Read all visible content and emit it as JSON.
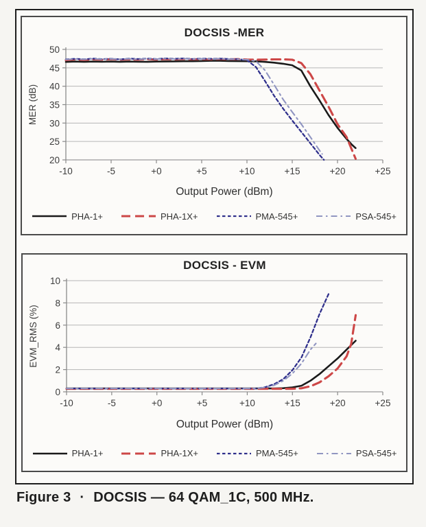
{
  "page": {
    "background": "#f6f5f2"
  },
  "style": {
    "grid_color": "#b6b6b6",
    "axis_color": "#8a8a8a",
    "baseline_color": "#9a9a9a",
    "tick_color": "#8a8a8a",
    "box_border": "#4a4a4a",
    "frame_border": "#1d1d1d",
    "title_color": "#222222",
    "text_color": "#3a3a3a"
  },
  "caption": {
    "label": "Figure 3",
    "separator": "·",
    "title": "DOCSIS — 64 QAM_1C, 500 MHz."
  },
  "chart_data": [
    {
      "id": "docsis-mer",
      "type": "line",
      "title": "DOCSIS -MER",
      "xlabel": "Output Power (dBm)",
      "ylabel": "MER (dB)",
      "xlim": [
        -10,
        25
      ],
      "ylim": [
        20,
        50
      ],
      "xticks": [
        -10,
        -5,
        0,
        5,
        10,
        15,
        20,
        25
      ],
      "xtick_labels": [
        "-10",
        "-5",
        "+0",
        "+5",
        "+10",
        "+15",
        "+20",
        "+25"
      ],
      "yticks": [
        20,
        25,
        30,
        35,
        40,
        45,
        50
      ],
      "ytick_labels": [
        "20",
        "25",
        "30",
        "35",
        "40",
        "45",
        "50"
      ],
      "grid": "horizontal",
      "legend_position": "bottom",
      "series": [
        {
          "name": "PHA-1+",
          "color": "#1a1a1a",
          "dash": "",
          "width": 2.6,
          "points": [
            [
              -10,
              46.6
            ],
            [
              -9,
              46.7
            ],
            [
              -8,
              46.62
            ],
            [
              -7,
              46.7
            ],
            [
              -6,
              46.65
            ],
            [
              -5,
              46.7
            ],
            [
              -4,
              46.62
            ],
            [
              -3,
              46.7
            ],
            [
              -2,
              46.65
            ],
            [
              -1,
              46.62
            ],
            [
              0,
              46.7
            ],
            [
              1,
              46.72
            ],
            [
              2,
              46.75
            ],
            [
              3,
              46.8
            ],
            [
              4,
              46.8
            ],
            [
              5,
              46.85
            ],
            [
              6,
              46.9
            ],
            [
              7,
              46.9
            ],
            [
              8,
              46.85
            ],
            [
              9,
              46.82
            ],
            [
              10,
              46.8
            ],
            [
              11,
              46.75
            ],
            [
              12,
              46.6
            ],
            [
              13,
              46.4
            ],
            [
              14,
              46.1
            ],
            [
              15,
              45.7
            ],
            [
              16,
              44.3
            ],
            [
              17,
              40.0
            ],
            [
              18,
              36.2
            ],
            [
              19,
              32.2
            ],
            [
              20,
              28.7
            ],
            [
              21,
              25.7
            ],
            [
              21.6,
              24.1
            ],
            [
              22,
              23.2
            ]
          ]
        },
        {
          "name": "PHA-1X+",
          "color": "#cd4747",
          "dash": "13 7",
          "width": 3.1,
          "points": [
            [
              -10,
              47.1
            ],
            [
              -9,
              47.3
            ],
            [
              -8,
              47.15
            ],
            [
              -7,
              47.32
            ],
            [
              -6,
              47.2
            ],
            [
              -5,
              47.35
            ],
            [
              -4,
              47.2
            ],
            [
              -3,
              47.3
            ],
            [
              -2,
              47.2
            ],
            [
              -1,
              47.35
            ],
            [
              0,
              47.25
            ],
            [
              1,
              47.35
            ],
            [
              2,
              47.3
            ],
            [
              3,
              47.4
            ],
            [
              4,
              47.3
            ],
            [
              5,
              47.35
            ],
            [
              6,
              47.3
            ],
            [
              7,
              47.4
            ],
            [
              8,
              47.3
            ],
            [
              9,
              47.35
            ],
            [
              10,
              47.25
            ],
            [
              11,
              47.2
            ],
            [
              12,
              47.25
            ],
            [
              13,
              47.3
            ],
            [
              14,
              47.3
            ],
            [
              15,
              47.2
            ],
            [
              16,
              46.3
            ],
            [
              17,
              43.3
            ],
            [
              18,
              38.9
            ],
            [
              19,
              34.5
            ],
            [
              20,
              29.7
            ],
            [
              21,
              26.2
            ],
            [
              22,
              20.3
            ]
          ]
        },
        {
          "name": "PMA-545+",
          "color": "#30308c",
          "dash": "4.5 3.5",
          "width": 2.3,
          "points": [
            [
              -10,
              47.3
            ],
            [
              -9,
              47.45
            ],
            [
              -8,
              47.32
            ],
            [
              -7,
              47.5
            ],
            [
              -6,
              47.35
            ],
            [
              -5,
              47.45
            ],
            [
              -4,
              47.3
            ],
            [
              -3,
              47.5
            ],
            [
              -2,
              47.4
            ],
            [
              -1,
              47.5
            ],
            [
              0,
              47.4
            ],
            [
              1,
              47.55
            ],
            [
              2,
              47.45
            ],
            [
              3,
              47.55
            ],
            [
              4,
              47.4
            ],
            [
              5,
              47.5
            ],
            [
              6,
              47.45
            ],
            [
              7,
              47.5
            ],
            [
              8,
              47.4
            ],
            [
              9,
              47.35
            ],
            [
              10,
              47.1
            ],
            [
              11,
              45.2
            ],
            [
              12,
              41.4
            ],
            [
              13,
              37.4
            ],
            [
              14,
              33.9
            ],
            [
              15,
              30.7
            ],
            [
              16,
              27.6
            ],
            [
              17,
              24.5
            ],
            [
              18,
              21.4
            ],
            [
              18.5,
              20.0
            ]
          ]
        },
        {
          "name": "PSA-545+",
          "color": "#9095c1",
          "dash": "9 5 2.5 5",
          "width": 2.1,
          "points": [
            [
              -10,
              47.25
            ],
            [
              -9,
              47.4
            ],
            [
              -8,
              47.3
            ],
            [
              -7,
              47.45
            ],
            [
              -6,
              47.32
            ],
            [
              -5,
              47.42
            ],
            [
              -4,
              47.35
            ],
            [
              -3,
              47.45
            ],
            [
              -2,
              47.3
            ],
            [
              -1,
              47.45
            ],
            [
              0,
              47.35
            ],
            [
              1,
              47.5
            ],
            [
              2,
              47.4
            ],
            [
              3,
              47.5
            ],
            [
              4,
              47.35
            ],
            [
              5,
              47.45
            ],
            [
              6,
              47.4
            ],
            [
              7,
              47.45
            ],
            [
              8,
              47.35
            ],
            [
              9,
              47.3
            ],
            [
              10,
              47.2
            ],
            [
              11,
              46.8
            ],
            [
              12,
              44.3
            ],
            [
              13,
              40.4
            ],
            [
              14,
              36.4
            ],
            [
              15,
              33.0
            ],
            [
              16,
              29.7
            ],
            [
              17,
              26.2
            ],
            [
              18,
              22.6
            ],
            [
              18.3,
              21.6
            ]
          ]
        }
      ]
    },
    {
      "id": "docsis-evm",
      "type": "line",
      "title": "DOCSIS - EVM",
      "xlabel": "Output Power (dBm)",
      "ylabel": "EVM_RMS (%)",
      "xlim": [
        -10,
        25
      ],
      "ylim": [
        0,
        10
      ],
      "xticks": [
        -10,
        -5,
        0,
        5,
        10,
        15,
        20,
        25
      ],
      "xtick_labels": [
        "-10",
        "-5",
        "+0",
        "+5",
        "+10",
        "+15",
        "+20",
        "+25"
      ],
      "yticks": [
        0,
        2,
        4,
        6,
        8,
        10
      ],
      "ytick_labels": [
        "0",
        "2",
        "4",
        "6",
        "8",
        "10"
      ],
      "grid": "horizontal",
      "legend_position": "bottom",
      "series": [
        {
          "name": "PHA-1+",
          "color": "#1a1a1a",
          "dash": "",
          "width": 2.6,
          "points": [
            [
              -10,
              0.3
            ],
            [
              13,
              0.3
            ],
            [
              14,
              0.33
            ],
            [
              15,
              0.4
            ],
            [
              16,
              0.55
            ],
            [
              17,
              1.0
            ],
            [
              18,
              1.6
            ],
            [
              19,
              2.3
            ],
            [
              20,
              3.0
            ],
            [
              21,
              3.8
            ],
            [
              22,
              4.6
            ]
          ]
        },
        {
          "name": "PHA-1X+",
          "color": "#cd4747",
          "dash": "13 7",
          "width": 3.1,
          "points": [
            [
              -10,
              0.27
            ],
            [
              15,
              0.27
            ],
            [
              16,
              0.32
            ],
            [
              17,
              0.5
            ],
            [
              18,
              0.85
            ],
            [
              19,
              1.4
            ],
            [
              20,
              2.1
            ],
            [
              21,
              3.2
            ],
            [
              21.5,
              4.3
            ],
            [
              22,
              6.9
            ]
          ]
        },
        {
          "name": "PMA-545+",
          "color": "#30308c",
          "dash": "4.5 3.5",
          "width": 2.3,
          "points": [
            [
              -10,
              0.3
            ],
            [
              11,
              0.3
            ],
            [
              12,
              0.42
            ],
            [
              13,
              0.7
            ],
            [
              14,
              1.15
            ],
            [
              15,
              1.95
            ],
            [
              16,
              3.1
            ],
            [
              17,
              4.9
            ],
            [
              18,
              7.0
            ],
            [
              19,
              8.8
            ]
          ]
        },
        {
          "name": "PSA-545+",
          "color": "#9095c1",
          "dash": "9 5 2.5 5",
          "width": 2.1,
          "points": [
            [
              -10,
              0.3
            ],
            [
              11,
              0.3
            ],
            [
              12,
              0.4
            ],
            [
              13,
              0.6
            ],
            [
              14,
              1.0
            ],
            [
              15,
              1.65
            ],
            [
              16,
              2.55
            ],
            [
              17,
              3.8
            ],
            [
              17.6,
              4.35
            ]
          ]
        }
      ]
    }
  ]
}
